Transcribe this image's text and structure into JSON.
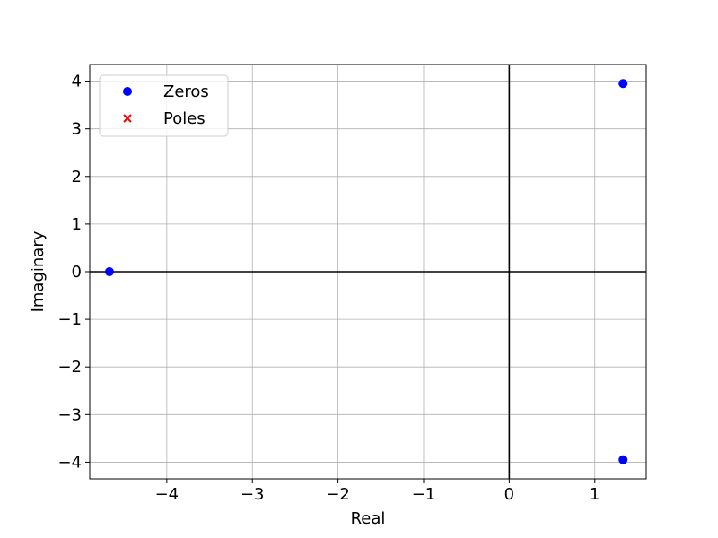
{
  "chart_data": {
    "type": "scatter",
    "title": "",
    "xlabel": "Real",
    "ylabel": "Imaginary",
    "xlim": [
      -4.9,
      1.6
    ],
    "ylim": [
      -4.35,
      4.35
    ],
    "xticks": [
      -4,
      -3,
      -2,
      -1,
      0,
      1
    ],
    "yticks": [
      -4,
      -3,
      -2,
      -1,
      0,
      1,
      2,
      3,
      4
    ],
    "xtick_labels": [
      "−4",
      "−3",
      "−2",
      "−1",
      "0",
      "1"
    ],
    "ytick_labels": [
      "−4",
      "−3",
      "−2",
      "−1",
      "0",
      "1",
      "2",
      "3",
      "4"
    ],
    "grid": true,
    "legend_position": "top-left",
    "series": [
      {
        "name": "Zeros",
        "marker": "circle",
        "color": "#0000ff",
        "points": [
          {
            "x": 1.33,
            "y": 3.95
          },
          {
            "x": 1.33,
            "y": -3.95
          },
          {
            "x": -4.67,
            "y": 0.0
          }
        ]
      },
      {
        "name": "Poles",
        "marker": "x",
        "color": "#ff0000",
        "points": []
      }
    ]
  }
}
